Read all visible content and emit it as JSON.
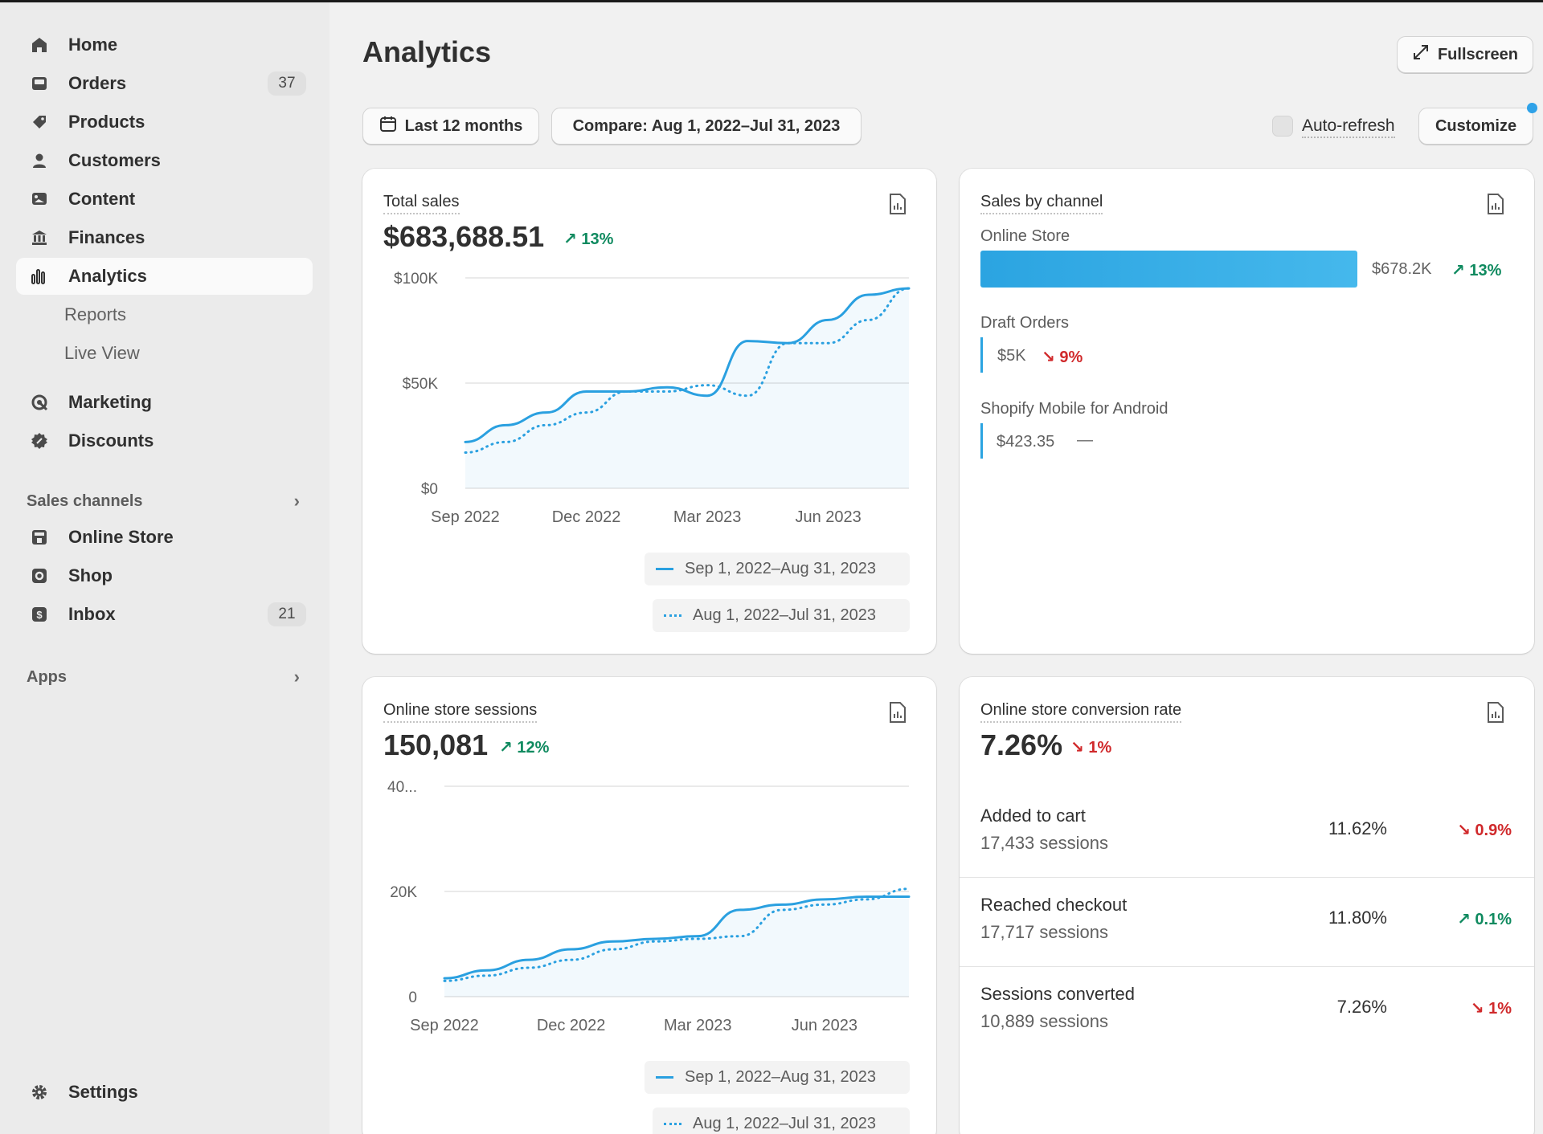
{
  "sidebar": {
    "nav": [
      {
        "label": "Home",
        "icon": "home-icon"
      },
      {
        "label": "Orders",
        "icon": "orders-icon",
        "badge": "37"
      },
      {
        "label": "Products",
        "icon": "tag-icon"
      },
      {
        "label": "Customers",
        "icon": "person-icon"
      },
      {
        "label": "Content",
        "icon": "content-icon"
      },
      {
        "label": "Finances",
        "icon": "bank-icon"
      },
      {
        "label": "Analytics",
        "icon": "bar-chart-icon"
      }
    ],
    "analytics_sub": [
      "Reports",
      "Live View"
    ],
    "nav2": [
      {
        "label": "Marketing",
        "icon": "target-icon"
      },
      {
        "label": "Discounts",
        "icon": "discount-icon"
      }
    ],
    "sales_channels_label": "Sales channels",
    "channels": [
      {
        "label": "Online Store",
        "icon": "store-icon"
      },
      {
        "label": "Shop",
        "icon": "shop-icon"
      },
      {
        "label": "Inbox",
        "icon": "inbox-icon",
        "badge": "21"
      }
    ],
    "apps_label": "Apps",
    "settings_label": "Settings"
  },
  "header": {
    "title": "Analytics",
    "fullscreen_label": "Fullscreen",
    "date_range_label": "Last 12 months",
    "compare_label": "Compare: Aug 1, 2022–Jul 31, 2023",
    "auto_refresh_label": "Auto-refresh",
    "customize_label": "Customize"
  },
  "total_sales": {
    "title": "Total sales",
    "value": "$683,688.51",
    "delta": "13%",
    "legend_current": "Sep 1, 2022–Aug 31, 2023",
    "legend_previous": "Aug 1, 2022–Jul 31, 2023"
  },
  "sales_by_channel": {
    "title": "Sales by channel",
    "channels": [
      {
        "name": "Online Store",
        "value": "$678.2K",
        "delta": "13%",
        "direction": "up",
        "share": 0.99
      },
      {
        "name": "Draft Orders",
        "value": "$5K",
        "delta": "9%",
        "direction": "down",
        "share": 0.007
      },
      {
        "name": "Shopify Mobile for Android",
        "value": "$423.35",
        "delta": "—",
        "direction": "none",
        "share": 0.0006
      }
    ]
  },
  "sessions": {
    "title": "Online store sessions",
    "value": "150,081",
    "delta": "12%",
    "legend_current": "Sep 1, 2022–Aug 31, 2023",
    "legend_previous": "Aug 1, 2022–Jul 31, 2023"
  },
  "conversion": {
    "title": "Online store conversion rate",
    "value": "7.26%",
    "delta": "1%",
    "rows": [
      {
        "name": "Added to cart",
        "sessions": "17,433 sessions",
        "pct": "11.62%",
        "delta": "0.9%",
        "direction": "down"
      },
      {
        "name": "Reached checkout",
        "sessions": "17,717 sessions",
        "pct": "11.80%",
        "delta": "0.1%",
        "direction": "up"
      },
      {
        "name": "Sessions converted",
        "sessions": "10,889 sessions",
        "pct": "7.26%",
        "delta": "1%",
        "direction": "down"
      }
    ]
  },
  "colors": {
    "accent": "#2aa0e0",
    "up": "#0f8a5f",
    "down": "#d0292b"
  },
  "chart_data": [
    {
      "type": "line",
      "name": "total-sales",
      "ylim": [
        0,
        100000
      ],
      "yticks": [
        "$0",
        "$50K",
        "$100K"
      ],
      "xticks": [
        "Sep 2022",
        "Dec 2022",
        "Mar 2023",
        "Jun 2023"
      ],
      "series": [
        {
          "name": "Sep 1, 2022–Aug 31, 2023",
          "style": "solid",
          "values": [
            22000,
            30000,
            36000,
            46000,
            46000,
            48000,
            44000,
            70000,
            69000,
            80000,
            92000,
            95000
          ]
        },
        {
          "name": "Aug 1, 2022–Jul 31, 2023",
          "style": "dotted",
          "values": [
            17000,
            22000,
            30000,
            36000,
            46000,
            46000,
            49000,
            44000,
            69000,
            69000,
            80000,
            95000
          ]
        }
      ]
    },
    {
      "type": "line",
      "name": "online-store-sessions",
      "ylim": [
        0,
        40000
      ],
      "yticks": [
        "0",
        "20K",
        "40..."
      ],
      "xticks": [
        "Sep 2022",
        "Dec 2022",
        "Mar 2023",
        "Jun 2023"
      ],
      "series": [
        {
          "name": "Sep 1, 2022–Aug 31, 2023",
          "style": "solid",
          "values": [
            3500,
            5000,
            7000,
            9000,
            10500,
            11000,
            11500,
            16500,
            17500,
            18500,
            19000,
            19000
          ]
        },
        {
          "name": "Aug 1, 2022–Jul 31, 2023",
          "style": "dotted",
          "values": [
            3000,
            4000,
            5500,
            7000,
            9000,
            10500,
            11000,
            11500,
            16500,
            17500,
            18500,
            20500
          ]
        }
      ]
    }
  ]
}
